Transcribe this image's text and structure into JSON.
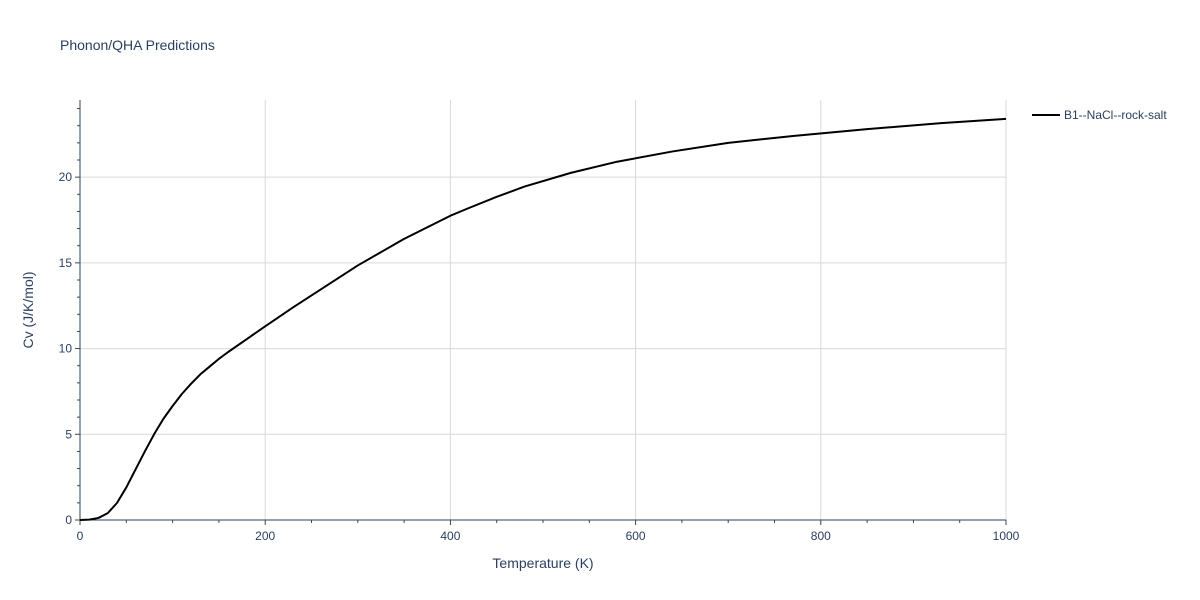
{
  "chart_data": {
    "type": "line",
    "title": "Phonon/QHA Predictions",
    "xlabel": "Temperature (K)",
    "ylabel": "Cv (J/K/mol)",
    "xlim": [
      0,
      1000
    ],
    "ylim": [
      0,
      24.5
    ],
    "x_ticks": [
      0,
      200,
      400,
      600,
      800,
      1000
    ],
    "y_ticks": [
      0,
      5,
      10,
      15,
      20
    ],
    "grid": true,
    "legend_position": "top-right outside plot",
    "series": [
      {
        "name": "B1--NaCl--rock-salt",
        "color": "#000000",
        "x": [
          0,
          10,
          20,
          30,
          40,
          50,
          60,
          70,
          80,
          90,
          100,
          110,
          120,
          130,
          140,
          150,
          160,
          180,
          200,
          230,
          260,
          300,
          350,
          400,
          420,
          450,
          480,
          530,
          580,
          640,
          700,
          770,
          850,
          930,
          1000
        ],
        "y": [
          0,
          0.02,
          0.12,
          0.4,
          1.0,
          1.9,
          2.95,
          4.0,
          5.0,
          5.9,
          6.65,
          7.35,
          7.95,
          8.5,
          8.95,
          9.4,
          9.8,
          10.55,
          11.3,
          12.4,
          13.45,
          14.85,
          16.4,
          17.75,
          18.2,
          18.85,
          19.45,
          20.25,
          20.9,
          21.5,
          22.0,
          22.4,
          22.8,
          23.15,
          23.4
        ]
      }
    ]
  },
  "colors": {
    "text": "#2a3f5f",
    "grid": "#d9d9d9",
    "line": "#000000"
  }
}
